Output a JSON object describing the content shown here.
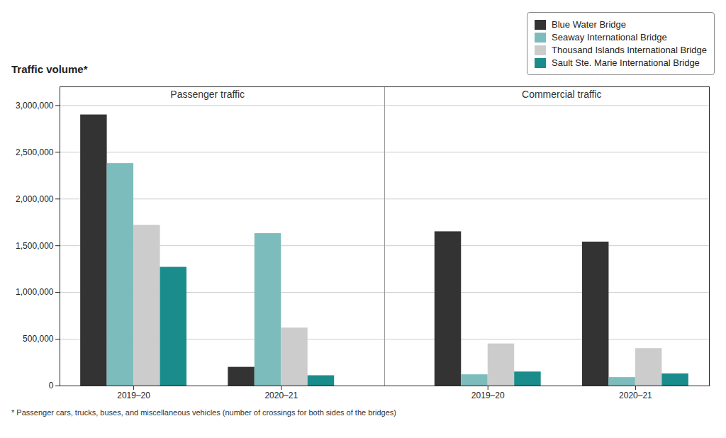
{
  "chart_data": {
    "type": "bar",
    "ylabel": "Traffic volume*",
    "caption": "* Passenger cars, trucks, buses, and miscellaneous vehicles (number of crossings for both sides of the bridges)",
    "annotations": [
      "Passenger traffic",
      "Commercial traffic"
    ],
    "categories": [
      "2019–20",
      "2020–21",
      "2019–20",
      "2020–21"
    ],
    "series": [
      {
        "name": "Blue Water Bridge",
        "color": "#333333",
        "values": [
          2900000,
          200000,
          1650000,
          1540000
        ]
      },
      {
        "name": "Seaway International Bridge",
        "color": "#7dbcbc",
        "values": [
          2380000,
          1630000,
          120000,
          90000
        ]
      },
      {
        "name": "Thousand Islands International Bridge",
        "color": "#cccccc",
        "values": [
          1720000,
          620000,
          450000,
          400000
        ]
      },
      {
        "name": "Sault Ste. Marie International Bridge",
        "color": "#1a8c8c",
        "values": [
          1270000,
          110000,
          150000,
          130000
        ]
      }
    ],
    "ylim": [
      0,
      3200000
    ],
    "yticks": [
      0,
      {
        "value": 500000,
        "label": "500,000"
      },
      {
        "value": 1000000,
        "label": "1,000,000"
      },
      {
        "value": 1500000,
        "label": "1,500,000"
      },
      {
        "value": 2000000,
        "label": "2,000,000"
      },
      {
        "value": 2500000,
        "label": "2,500,000"
      },
      {
        "value": 3000000,
        "label": "3,000,000"
      }
    ],
    "grid": true,
    "legend": "upper right"
  }
}
